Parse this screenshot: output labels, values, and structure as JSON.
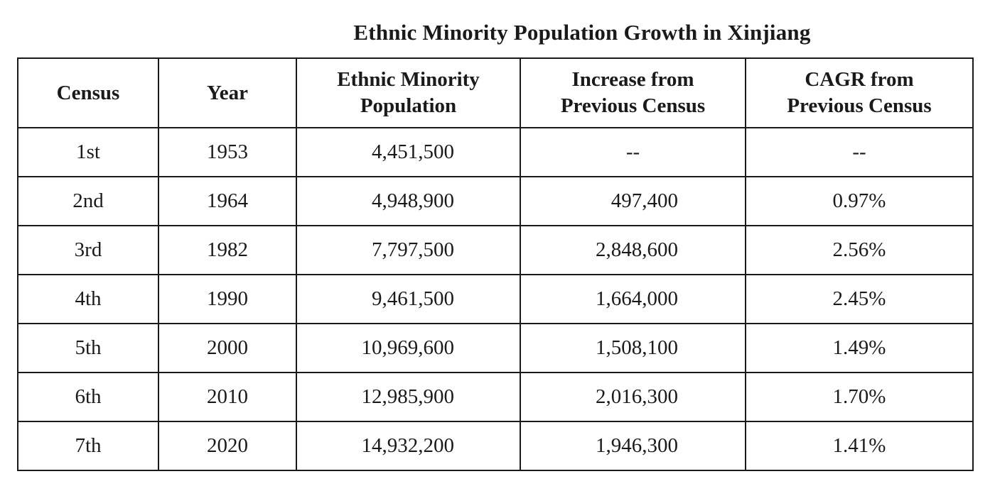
{
  "title": "Ethnic Minority Population Growth in Xinjiang",
  "table": {
    "headers": {
      "census": "Census",
      "year": "Year",
      "population_line1": "Ethnic Minority",
      "population_line2": "Population",
      "increase_line1": "Increase from",
      "increase_line2": "Previous Census",
      "cagr_line1": "CAGR from",
      "cagr_line2": "Previous Census"
    },
    "rows": [
      {
        "census": "1st",
        "year": "1953",
        "population": "4,451,500",
        "increase": "--",
        "cagr": "--"
      },
      {
        "census": "2nd",
        "year": "1964",
        "population": "4,948,900",
        "increase": "497,400",
        "cagr": "0.97%"
      },
      {
        "census": "3rd",
        "year": "1982",
        "population": "7,797,500",
        "increase": "2,848,600",
        "cagr": "2.56%"
      },
      {
        "census": "4th",
        "year": "1990",
        "population": "9,461,500",
        "increase": "1,664,000",
        "cagr": "2.45%"
      },
      {
        "census": "5th",
        "year": "2000",
        "population": "10,969,600",
        "increase": "1,508,100",
        "cagr": "1.49%"
      },
      {
        "census": "6th",
        "year": "2010",
        "population": "12,985,900",
        "increase": "2,016,300",
        "cagr": "1.70%"
      },
      {
        "census": "7th",
        "year": "2020",
        "population": "14,932,200",
        "increase": "1,946,300",
        "cagr": "1.41%"
      }
    ]
  }
}
